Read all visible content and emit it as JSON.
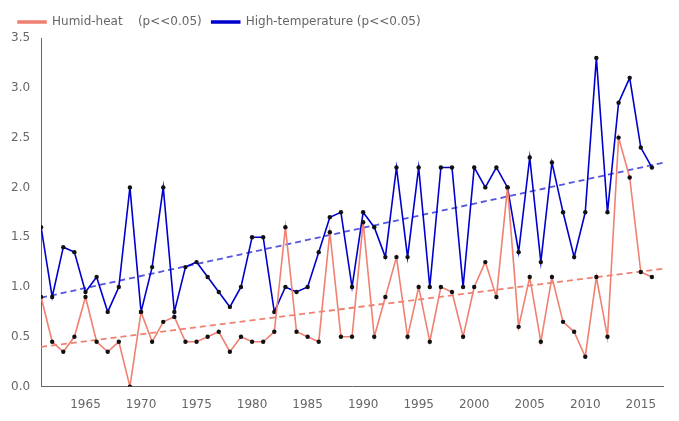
{
  "chart_data": {
    "type": "line",
    "x": [
      1961,
      1962,
      1963,
      1964,
      1965,
      1966,
      1967,
      1968,
      1969,
      1970,
      1971,
      1972,
      1973,
      1974,
      1975,
      1976,
      1977,
      1978,
      1979,
      1980,
      1981,
      1982,
      1983,
      1984,
      1985,
      1986,
      1987,
      1988,
      1989,
      1990,
      1991,
      1992,
      1993,
      1994,
      1995,
      1996,
      1997,
      1998,
      1999,
      2000,
      2001,
      2002,
      2003,
      2004,
      2005,
      2006,
      2007,
      2008,
      2009,
      2010,
      2011,
      2012,
      2013,
      2014,
      2015,
      2016
    ],
    "series": [
      {
        "name": "Humid-heat    (p<<0.05)",
        "color": "#F08070",
        "marker": "dot",
        "marker_color": "#111111",
        "line_style": "solid",
        "values": [
          0.9,
          0.45,
          0.35,
          0.5,
          0.9,
          0.45,
          0.35,
          0.45,
          0.0,
          0.75,
          0.45,
          0.65,
          0.7,
          0.45,
          0.45,
          0.5,
          0.55,
          0.35,
          0.5,
          0.45,
          0.45,
          0.55,
          1.6,
          0.55,
          0.5,
          0.45,
          1.55,
          0.5,
          0.5,
          1.65,
          0.5,
          0.9,
          1.3,
          0.5,
          1.0,
          0.45,
          1.0,
          0.95,
          0.5,
          1.0,
          1.25,
          0.9,
          2.0,
          0.6,
          1.1,
          0.45,
          1.1,
          0.65,
          0.55,
          0.3,
          1.1,
          0.5,
          2.5,
          2.1,
          1.15,
          1.1
        ]
      },
      {
        "name": "High-temperature (p<<0.05)",
        "color": "#0000CC",
        "marker": "dot",
        "marker_color": "#111111",
        "line_style": "solid",
        "values": [
          1.6,
          0.9,
          1.4,
          1.35,
          0.95,
          1.1,
          0.75,
          1.0,
          2.0,
          0.75,
          1.2,
          2.0,
          0.75,
          1.2,
          1.25,
          1.1,
          0.95,
          0.8,
          1.0,
          1.5,
          1.5,
          0.75,
          1.0,
          0.95,
          1.0,
          1.35,
          1.7,
          1.75,
          1.0,
          1.75,
          1.6,
          1.3,
          2.2,
          1.3,
          2.2,
          1.0,
          2.2,
          2.2,
          1.0,
          2.2,
          2.0,
          2.2,
          2.0,
          1.35,
          2.3,
          1.25,
          2.25,
          1.75,
          1.3,
          1.75,
          3.3,
          1.75,
          2.85,
          3.1,
          2.4,
          2.2
        ]
      },
      {
        "x": [
          1961,
          2017
        ],
        "values": [
          0.399624,
          1.182208
        ],
        "color": "#F08070",
        "line_style": "dashed",
        "marker": "none"
      },
      {
        "x": [
          1961,
          2017
        ],
        "values": [
          0.892387,
          2.24789
        ],
        "color": "#5555DD",
        "line_style": "dashed",
        "marker": "none"
      }
    ],
    "xlim": [
      1961,
      2017
    ],
    "xticks": [
      1965,
      1970,
      1975,
      1980,
      1985,
      1990,
      1995,
      2000,
      2005,
      2010,
      2015
    ],
    "ylim": [
      0.0,
      3.5
    ],
    "yticks": [
      {
        "value": 0.0,
        "label": "0.0"
      },
      {
        "value": 0.5,
        "label": "0.5"
      },
      {
        "value": 1.0,
        "label": "1.0"
      },
      {
        "value": 1.5,
        "label": "1.5"
      },
      {
        "value": 2.0,
        "label": "2.0"
      },
      {
        "value": 2.5,
        "label": "2.5"
      },
      {
        "value": 3.0,
        "label": "3.0"
      },
      {
        "value": 3.5,
        "label": "3.5"
      }
    ],
    "grid": false,
    "legend": "upper left"
  }
}
